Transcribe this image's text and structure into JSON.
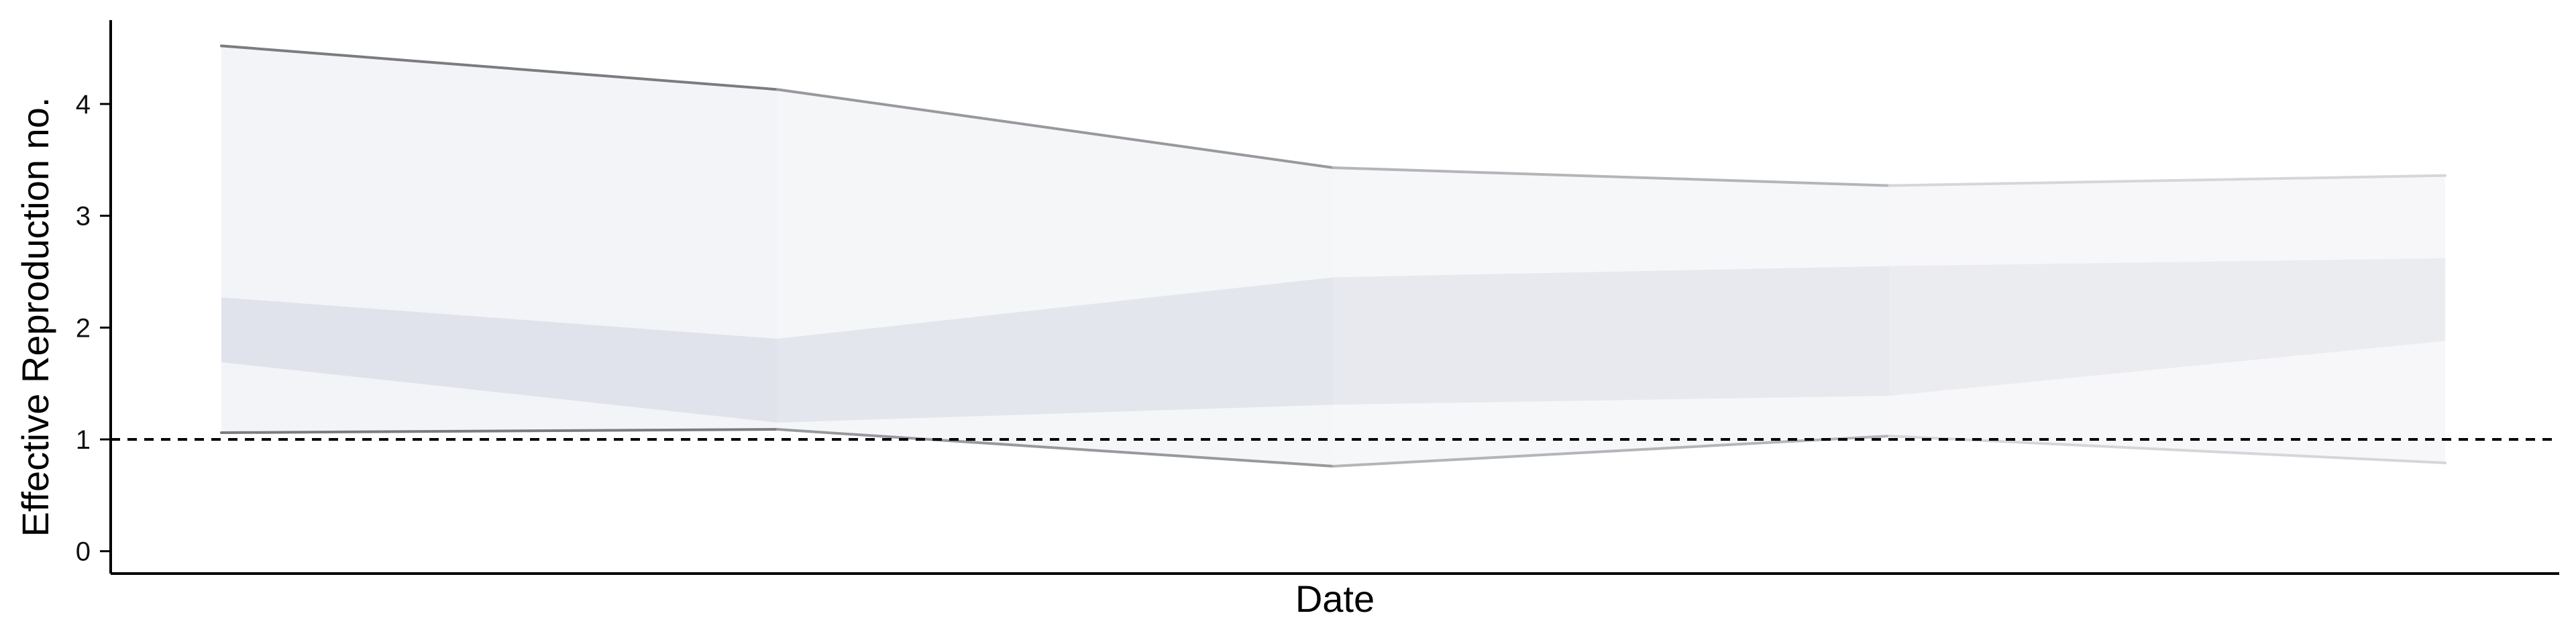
{
  "chart_data": {
    "type": "area",
    "title": "",
    "xlabel": "Date",
    "ylabel": "Effective Reproduction no.",
    "x_categories": [
      "",
      "",
      "",
      "",
      ""
    ],
    "ylim": [
      -0.2,
      4.75
    ],
    "yticks": [
      0,
      1,
      2,
      3,
      4
    ],
    "reference_line": {
      "y": 1,
      "style": "dashed",
      "color": "#000000"
    },
    "grid": false,
    "legend": "none",
    "bands": {
      "outer_upper": [
        4.52,
        4.13,
        3.43,
        3.27,
        3.36
      ],
      "outer_lower": [
        1.06,
        1.09,
        0.76,
        1.03,
        0.79
      ],
      "inner_upper": [
        2.27,
        1.9,
        2.45,
        2.55,
        2.62
      ],
      "inner_lower": [
        1.69,
        1.15,
        1.31,
        1.39,
        1.88
      ]
    },
    "segment_colors": {
      "outer_fill": [
        "#f3f4f7",
        "#f5f6f8",
        "#f6f7f9",
        "#f7f7f9"
      ],
      "inner_fill": [
        "#e1e3ec",
        "#e4e6ed",
        "#e8e9ee",
        "#ebecf0"
      ],
      "upper_edge": [
        "#7b7c80",
        "#98999d",
        "#b4b5b8",
        "#d5d6d9"
      ],
      "lower_edge": [
        "#7b7c80",
        "#98999d",
        "#b4b5b8",
        "#d5d6d9"
      ]
    }
  }
}
